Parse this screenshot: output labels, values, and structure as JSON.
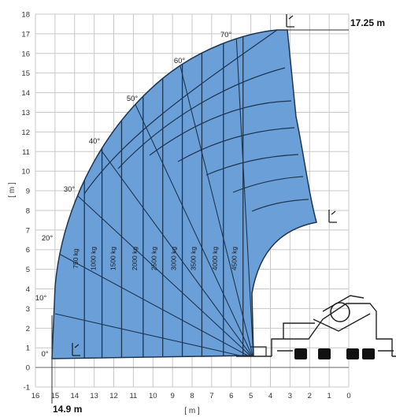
{
  "diagram": {
    "x_axis": {
      "unit_label": "[ m ]",
      "min": 0,
      "max": 16,
      "ticks": [
        "16",
        "15",
        "14",
        "13",
        "12",
        "11",
        "10",
        "9",
        "8",
        "7",
        "6",
        "5",
        "4",
        "3",
        "2",
        "1",
        "0"
      ]
    },
    "y_axis": {
      "unit_label": "[ m ]",
      "min": -1,
      "max": 18,
      "ticks": [
        "18",
        "17",
        "16",
        "15",
        "14",
        "13",
        "12",
        "11",
        "10",
        "9",
        "8",
        "7",
        "6",
        "5",
        "4",
        "3",
        "2",
        "1",
        "0",
        "-1"
      ]
    },
    "max_height_label": "17.25 m",
    "max_outreach_label": "14.9 m",
    "max_height_m": 17.25,
    "max_outreach_m": 14.9,
    "boom_angles": [
      {
        "label": "0°",
        "angle": 0
      },
      {
        "label": "10°",
        "angle": 10
      },
      {
        "label": "20°",
        "angle": 20
      },
      {
        "label": "30°",
        "angle": 30
      },
      {
        "label": "40°",
        "angle": 40
      },
      {
        "label": "50°",
        "angle": 50
      },
      {
        "label": "60°",
        "angle": 60
      },
      {
        "label": "70°",
        "angle": 70
      }
    ],
    "load_zones": [
      {
        "label": "750 kg",
        "distance_m": 13.5
      },
      {
        "label": "1000 kg",
        "distance_m": 12.6
      },
      {
        "label": "1500 kg",
        "distance_m": 11.6
      },
      {
        "label": "2000 kg",
        "distance_m": 10.5
      },
      {
        "label": "2500 kg",
        "distance_m": 9.5
      },
      {
        "label": "3000 kg",
        "distance_m": 8.5
      },
      {
        "label": "3500 kg",
        "distance_m": 7.5
      },
      {
        "label": "4000 kg",
        "distance_m": 6.4
      },
      {
        "label": "4500 kg",
        "distance_m": 5.4
      }
    ],
    "colors": {
      "fill": "#6a9fd8",
      "line": "#1e3550",
      "grid": "#c8c8c8"
    }
  }
}
